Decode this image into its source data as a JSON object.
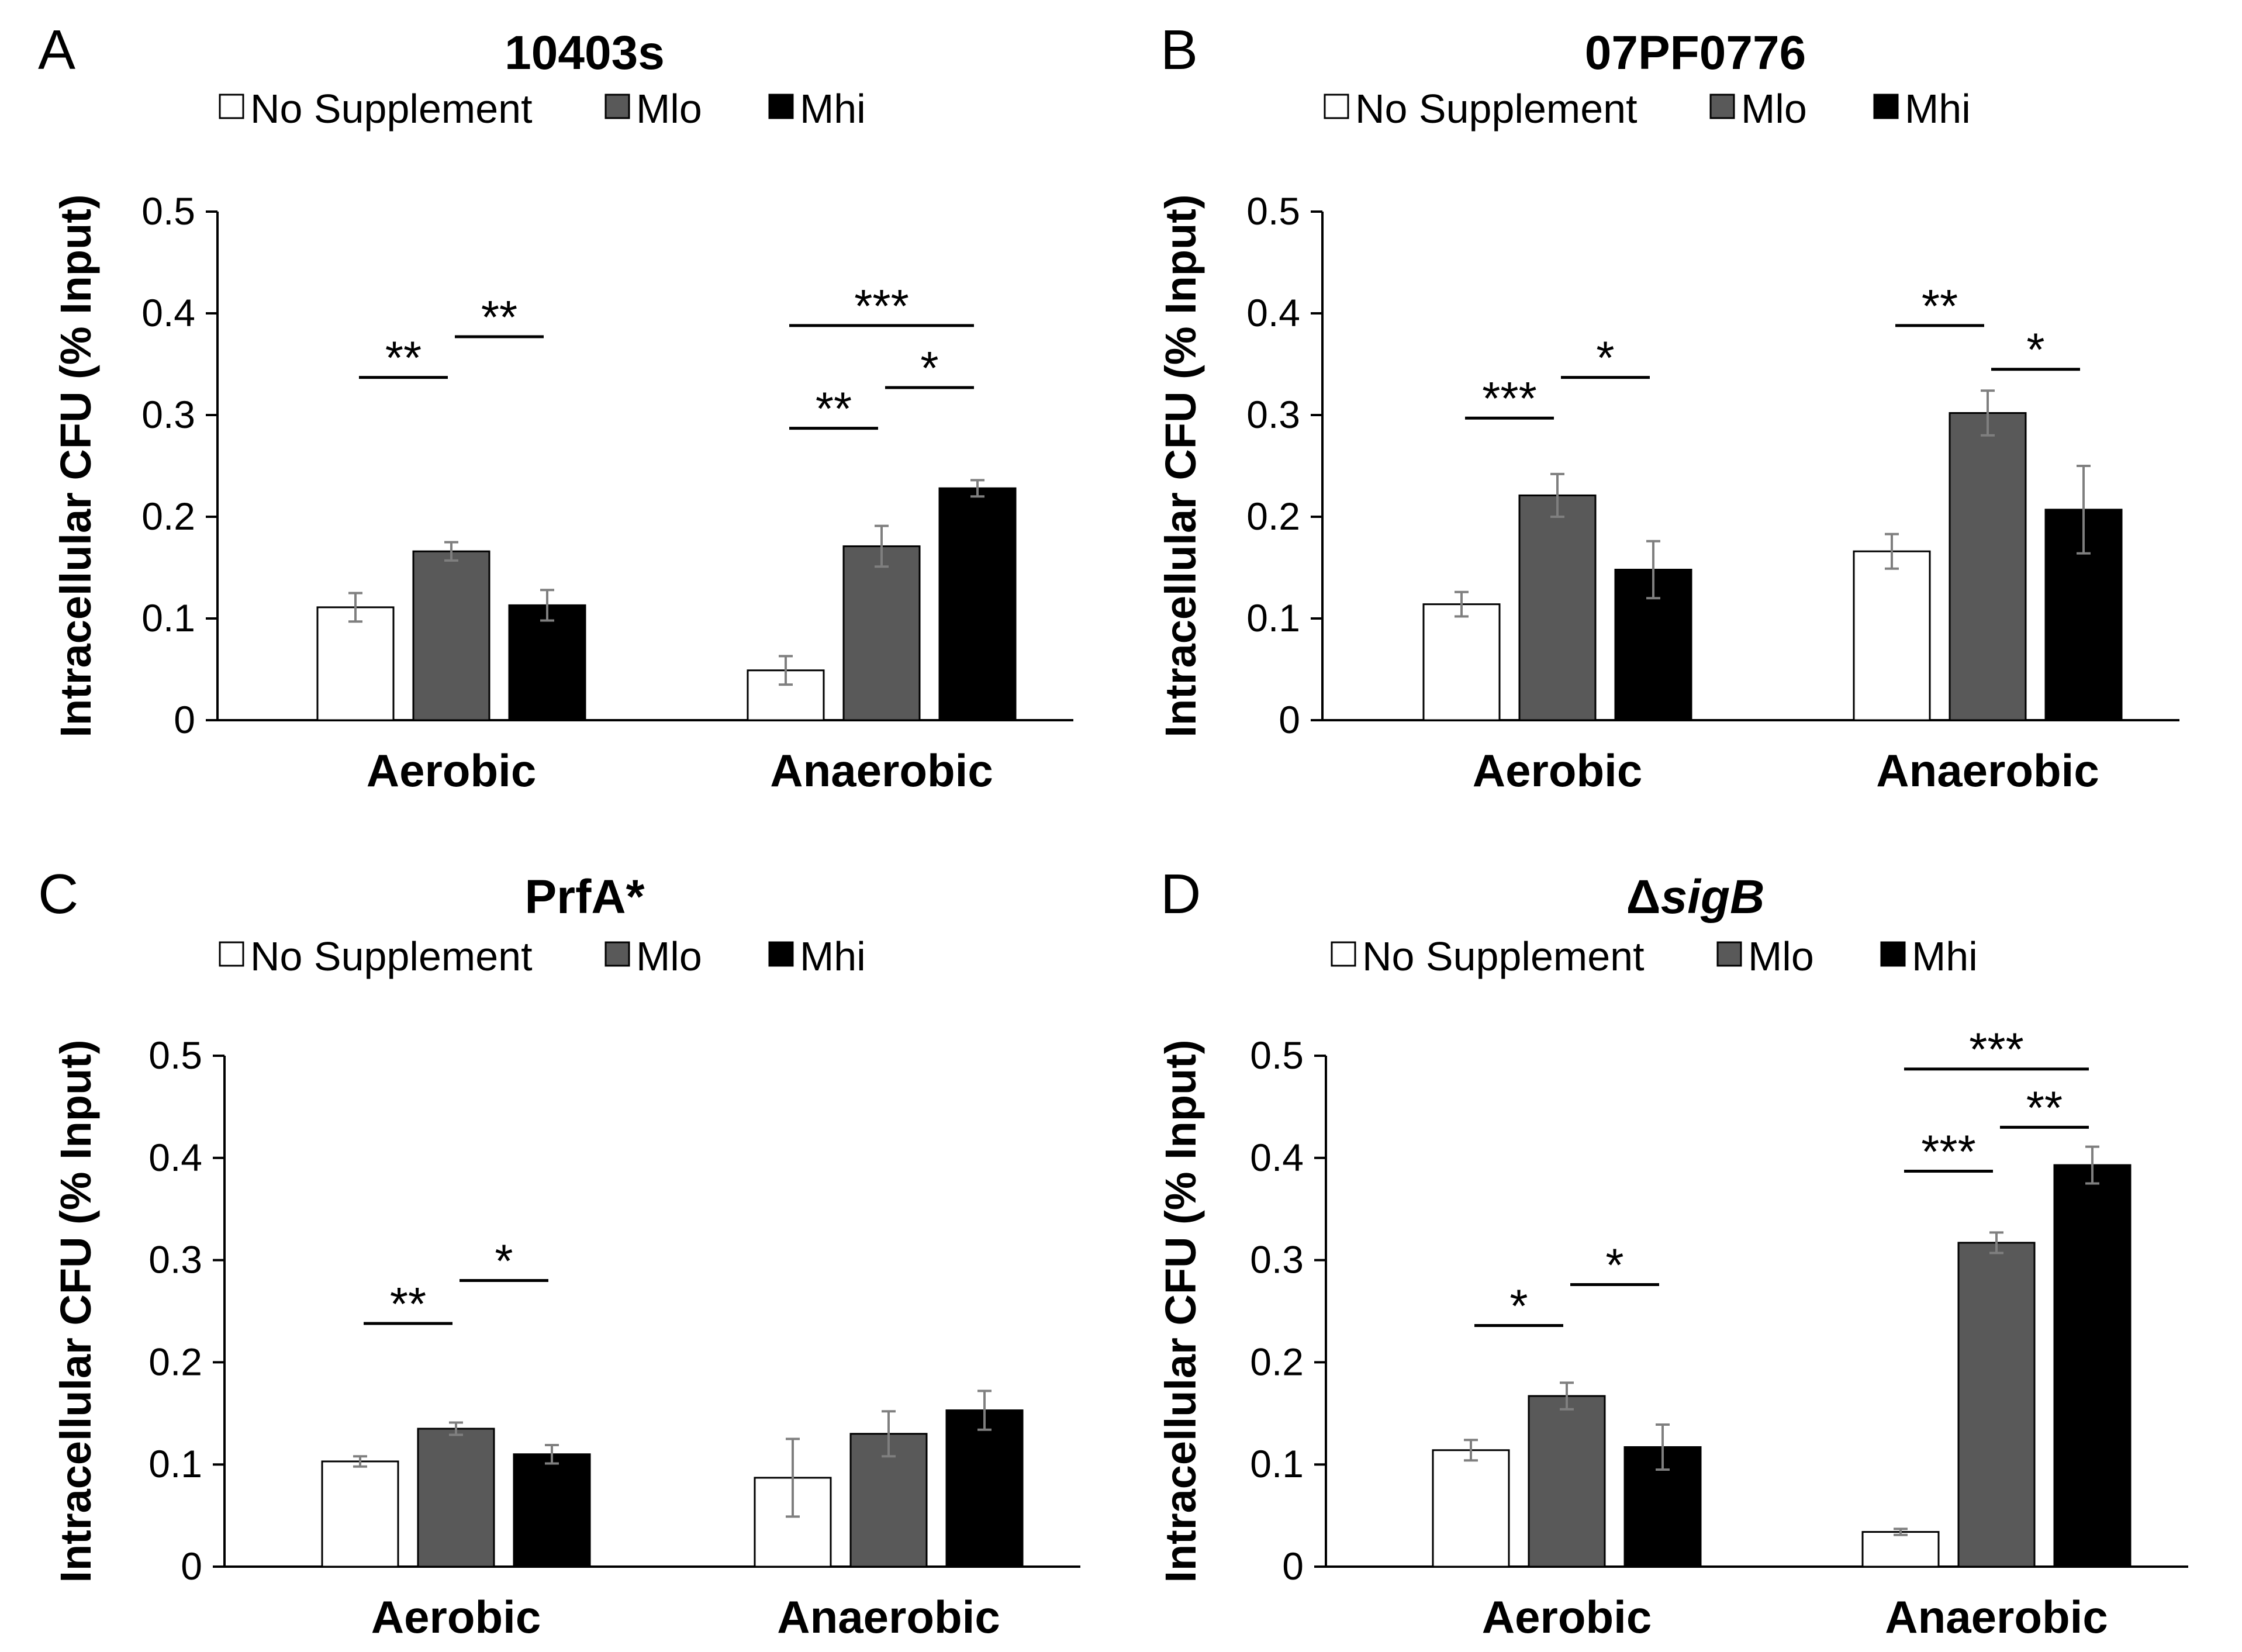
{
  "colors": {
    "no_supplement": "#ffffff",
    "mlo": "#595959",
    "mhi": "#000000",
    "error_bar": "#7f7f7f"
  },
  "chart_data": [
    {
      "panel": "A",
      "type": "bar",
      "title": "10403s",
      "title_italic": false,
      "categories": [
        "Aerobic",
        "Anaerobic"
      ],
      "series": [
        {
          "name": "No Supplement",
          "values": [
            0.111,
            0.049
          ],
          "errors": [
            0.014,
            0.014
          ]
        },
        {
          "name": "Mlo",
          "values": [
            0.166,
            0.171
          ],
          "errors": [
            0.009,
            0.02
          ]
        },
        {
          "name": "Mhi",
          "values": [
            0.113,
            0.228
          ],
          "errors": [
            0.015,
            0.008
          ]
        }
      ],
      "ylabel": "Intracellular CFU (% Input)",
      "ylim": [
        0,
        0.5
      ],
      "yticks": [
        "0",
        "0.1",
        "0.2",
        "0.3",
        "0.4",
        "0.5"
      ],
      "significance": [
        {
          "category": 0,
          "from": 0,
          "to": 1,
          "label": "**",
          "level": 0.337
        },
        {
          "category": 0,
          "from": 1,
          "to": 2,
          "label": "**",
          "level": 0.377
        },
        {
          "category": 1,
          "from": 0,
          "to": 1,
          "label": "**",
          "level": 0.287
        },
        {
          "category": 1,
          "from": 1,
          "to": 2,
          "label": "*",
          "level": 0.327
        },
        {
          "category": 1,
          "from": 0,
          "to": 2,
          "label": "***",
          "level": 0.388
        }
      ]
    },
    {
      "panel": "B",
      "type": "bar",
      "title": "07PF0776",
      "title_italic": false,
      "categories": [
        "Aerobic",
        "Anaerobic"
      ],
      "series": [
        {
          "name": "No Supplement",
          "values": [
            0.114,
            0.166
          ],
          "errors": [
            0.012,
            0.017
          ]
        },
        {
          "name": "Mlo",
          "values": [
            0.221,
            0.302
          ],
          "errors": [
            0.021,
            0.022
          ]
        },
        {
          "name": "Mhi",
          "values": [
            0.148,
            0.207
          ],
          "errors": [
            0.028,
            0.043
          ]
        }
      ],
      "ylabel": "Intracellular CFU (% Input)",
      "ylim": [
        0,
        0.5
      ],
      "yticks": [
        "0",
        "0.1",
        "0.2",
        "0.3",
        "0.4",
        "0.5"
      ],
      "significance": [
        {
          "category": 0,
          "from": 0,
          "to": 1,
          "label": "***",
          "level": 0.297
        },
        {
          "category": 0,
          "from": 1,
          "to": 2,
          "label": "*",
          "level": 0.337
        },
        {
          "category": 1,
          "from": 0,
          "to": 1,
          "label": "**",
          "level": 0.388
        },
        {
          "category": 1,
          "from": 1,
          "to": 2,
          "label": "*",
          "level": 0.345
        }
      ]
    },
    {
      "panel": "C",
      "type": "bar",
      "title": "PrfA*",
      "title_italic": false,
      "categories": [
        "Aerobic",
        "Anaerobic"
      ],
      "series": [
        {
          "name": "No Supplement",
          "values": [
            0.103,
            0.087
          ],
          "errors": [
            0.005,
            0.038
          ]
        },
        {
          "name": "Mlo",
          "values": [
            0.135,
            0.13
          ],
          "errors": [
            0.006,
            0.022
          ]
        },
        {
          "name": "Mhi",
          "values": [
            0.11,
            0.153
          ],
          "errors": [
            0.009,
            0.019
          ]
        }
      ],
      "ylabel": "Intracellular CFU (% Input)",
      "ylim": [
        0,
        0.5
      ],
      "yticks": [
        "0",
        "0.1",
        "0.2",
        "0.3",
        "0.4",
        "0.5"
      ],
      "significance": [
        {
          "category": 0,
          "from": 0,
          "to": 1,
          "label": "**",
          "level": 0.238
        },
        {
          "category": 0,
          "from": 1,
          "to": 2,
          "label": "*",
          "level": 0.28
        }
      ]
    },
    {
      "panel": "D",
      "type": "bar",
      "title": "ΔsigB",
      "title_prefix": "Δ",
      "title_italic_part": "sigB",
      "title_italic": true,
      "categories": [
        "Aerobic",
        "Anaerobic"
      ],
      "series": [
        {
          "name": "No Supplement",
          "values": [
            0.114,
            0.034
          ],
          "errors": [
            0.01,
            0.003
          ]
        },
        {
          "name": "Mlo",
          "values": [
            0.167,
            0.317
          ],
          "errors": [
            0.013,
            0.01
          ]
        },
        {
          "name": "Mhi",
          "values": [
            0.117,
            0.393
          ],
          "errors": [
            0.022,
            0.018
          ]
        }
      ],
      "ylabel": "Intracellular CFU (% Input)",
      "ylim": [
        0,
        0.5
      ],
      "yticks": [
        "0",
        "0.1",
        "0.2",
        "0.3",
        "0.4",
        "0.5"
      ],
      "significance": [
        {
          "category": 0,
          "from": 0,
          "to": 1,
          "label": "*",
          "level": 0.236
        },
        {
          "category": 0,
          "from": 1,
          "to": 2,
          "label": "*",
          "level": 0.276
        },
        {
          "category": 1,
          "from": 0,
          "to": 1,
          "label": "***",
          "level": 0.387
        },
        {
          "category": 1,
          "from": 1,
          "to": 2,
          "label": "**",
          "level": 0.43
        },
        {
          "category": 1,
          "from": 0,
          "to": 2,
          "label": "***",
          "level": 0.487
        }
      ]
    }
  ]
}
